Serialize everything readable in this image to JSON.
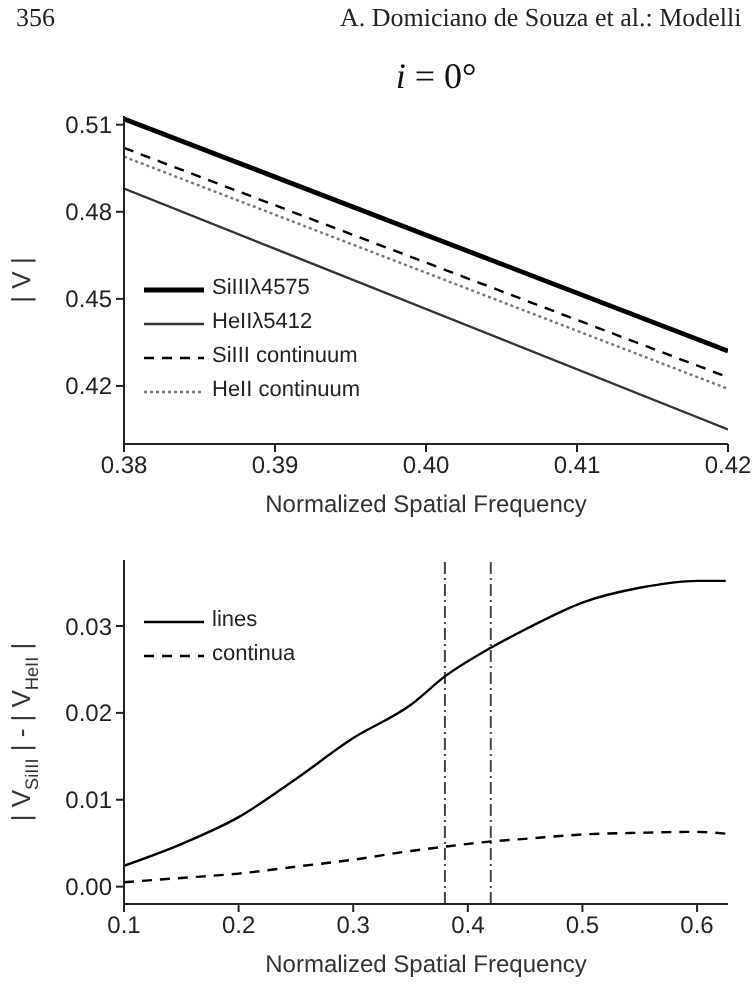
{
  "chart_data": [
    {
      "type": "line",
      "title": "i = 0°",
      "annotations": [
        "356",
        "A. Domiciano de Souza et al.: Modelli"
      ],
      "xlabel": "Normalized Spatial Frequency",
      "ylabel": "| V |",
      "x": [
        0.38,
        0.42
      ],
      "xlim": [
        0.38,
        0.42
      ],
      "xticks": [
        0.38,
        0.39,
        {
          "value": 0.4,
          "label": "0.40"
        },
        0.41,
        0.42
      ],
      "ylim": [
        0.4,
        0.513
      ],
      "yticks": [
        0.42,
        0.45,
        0.48,
        0.51
      ],
      "marker": "none",
      "legend": "bottom left",
      "series": [
        {
          "name": "SiIIIλ4575",
          "color": "#000000",
          "line_style": "solid",
          "values": [
            0.512,
            0.432
          ]
        },
        {
          "name": "HeIIλ5412",
          "color": "#333333",
          "line_style": "solid",
          "values": [
            0.488,
            0.405
          ]
        },
        {
          "name": "SiIII continuum",
          "color": "#000000",
          "line_style": "dashed",
          "values": [
            0.502,
            0.423
          ]
        },
        {
          "name": "HeII continuum",
          "color": "#777777",
          "line_style": "dotted",
          "values": [
            0.499,
            0.419
          ]
        }
      ]
    },
    {
      "type": "line",
      "xlabel": "Normalized Spatial Frequency",
      "ylabel": "| V$_{SiIII}$ | - | V$_{HeII}$ |",
      "x": [
        0.1,
        0.15,
        0.2,
        0.25,
        0.3,
        0.35,
        0.38,
        0.42,
        0.45,
        0.5,
        0.55,
        0.6,
        0.625
      ],
      "xlim": [
        0.1,
        0.627
      ],
      "xticks": [
        0.1,
        0.2,
        0.3,
        0.4,
        0.5,
        0.6
      ],
      "ylim": [
        -0.002,
        0.0376
      ],
      "yticks": [
        {
          "value": 0,
          "label": "0.00"
        },
        0.01,
        0.02,
        0.03
      ],
      "marker": "none",
      "legend": "top left",
      "ref_lines": [
        {
          "axis": "x",
          "value": 0.38,
          "line_style": "dashdot",
          "color": "#444444"
        },
        {
          "axis": "x",
          "value": 0.42,
          "line_style": "dashdot",
          "color": "#444444"
        }
      ],
      "series": [
        {
          "name": "lines",
          "color": "#000000",
          "line_style": "solid",
          "values": [
            0.0024,
            0.0049,
            0.008,
            0.0124,
            0.0171,
            0.0209,
            0.0242,
            0.0275,
            0.0296,
            0.0327,
            0.0344,
            0.0352,
            0.0352
          ]
        },
        {
          "name": "continua",
          "color": "#000000",
          "line_style": "dashed",
          "values": [
            0.0005,
            0.001,
            0.0015,
            0.0023,
            0.0031,
            0.0041,
            0.0046,
            0.0052,
            0.0055,
            0.006,
            0.0062,
            0.0063,
            0.0061
          ]
        }
      ]
    }
  ]
}
